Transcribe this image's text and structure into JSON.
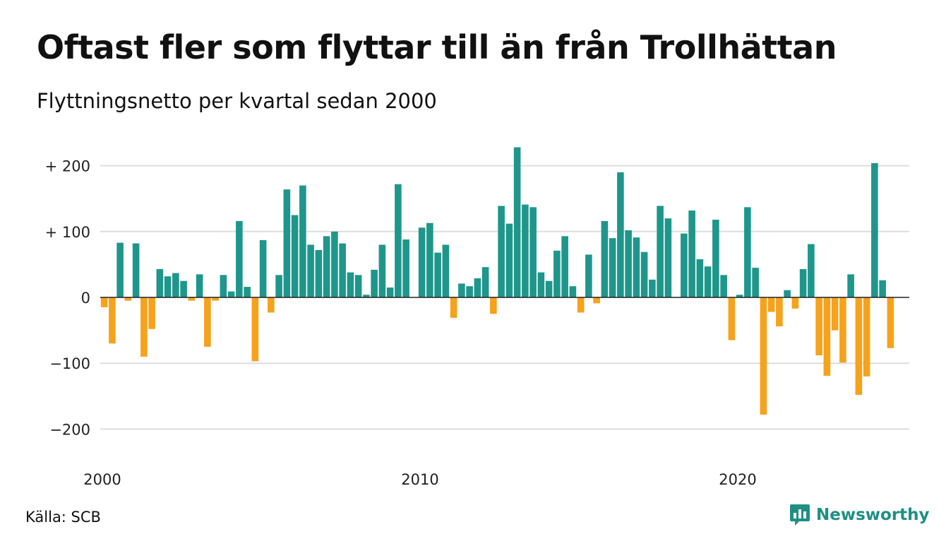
{
  "header": {
    "title": "Oftast fler som flyttar till än från Trollhättan",
    "subtitle": "Flyttningsnetto per kvartal sedan 2000"
  },
  "footer": {
    "source": "Källa: SCB",
    "brand": "Newsworthy",
    "brand_icon": "bar-chart-speech-bubble-icon"
  },
  "colors": {
    "positive": "#1f968b",
    "negative": "#f6a21b",
    "grid": "#dddddd",
    "brand": "#1f8f84"
  },
  "chart_data": {
    "type": "bar",
    "title": "Oftast fler som flyttar till än från Trollhättan",
    "subtitle": "Flyttningsnetto per kvartal sedan 2000",
    "xlabel": "",
    "ylabel": "",
    "ylim": [
      -230,
      230
    ],
    "yticks": [
      200,
      100,
      0,
      -100,
      -200
    ],
    "ytick_labels": [
      "+ 200",
      "+ 100",
      "0",
      "−100",
      "−200"
    ],
    "xticks": [
      "2000",
      "2010",
      "2020"
    ],
    "grid": true,
    "legend": "none",
    "start": "2000 Q1",
    "frequency": "quarter",
    "values": [
      -15,
      -70,
      83,
      -5,
      82,
      -90,
      -48,
      43,
      32,
      37,
      25,
      -5,
      35,
      -75,
      -5,
      34,
      9,
      116,
      16,
      -97,
      87,
      -23,
      34,
      164,
      125,
      170,
      80,
      72,
      93,
      100,
      82,
      38,
      34,
      4,
      42,
      80,
      15,
      172,
      88,
      0,
      106,
      113,
      68,
      80,
      -31,
      21,
      17,
      29,
      46,
      -25,
      139,
      112,
      228,
      141,
      137,
      38,
      25,
      71,
      93,
      17,
      -23,
      65,
      -9,
      116,
      90,
      190,
      102,
      91,
      69,
      27,
      139,
      120,
      0,
      97,
      132,
      58,
      47,
      118,
      34,
      -65,
      4,
      137,
      45,
      -178,
      -22,
      -44,
      11,
      -17,
      43,
      81,
      -88,
      -119,
      -50,
      -99,
      35,
      -148,
      -120,
      204,
      26,
      -77
    ]
  }
}
